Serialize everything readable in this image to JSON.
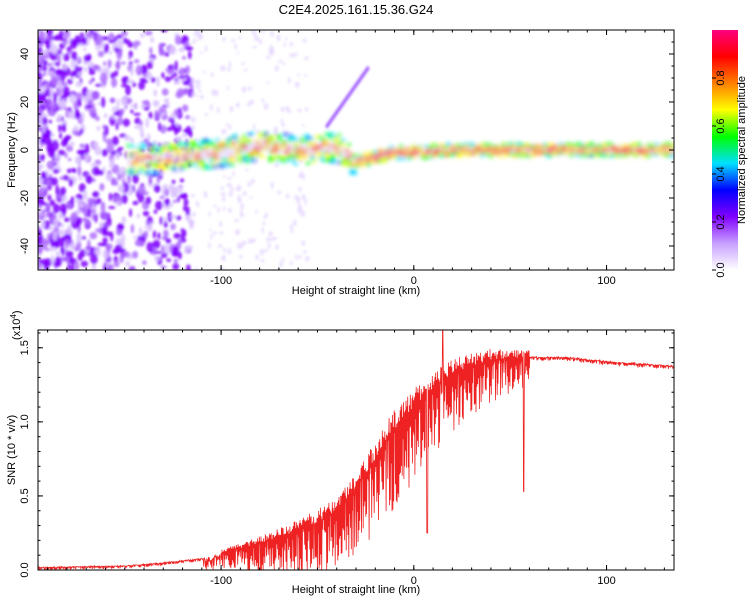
{
  "title": "C2E4.2025.161.15.36.G24",
  "chart_data": [
    {
      "type": "heatmap",
      "xlabel": "Height of straight line (km)",
      "ylabel": "Frequency (Hz)",
      "xlim": [
        -195,
        135
      ],
      "ylim": [
        -50,
        50
      ],
      "xticks": [
        -100,
        0,
        100
      ],
      "xtick_labels": [
        "-100",
        "0",
        "100"
      ],
      "yticks": [
        -40,
        -20,
        0,
        20,
        40
      ],
      "ytick_labels": [
        "-40",
        "-20",
        "0",
        "20",
        "40"
      ],
      "colorbar": {
        "label": "Normalized spectral amplitude",
        "range": [
          0,
          1
        ],
        "ticks": [
          0.0,
          0.2,
          0.4,
          0.6,
          0.8
        ],
        "tick_labels": [
          "0.0",
          "0.2",
          "0.4",
          "0.6",
          "0.8"
        ],
        "colormap": [
          "#ffffff",
          "#c8a0ff",
          "#8000ff",
          "#0000ff",
          "#00e0ff",
          "#00ff00",
          "#ffff00",
          "#ff8000",
          "#ff0000",
          "#ff0080"
        ]
      },
      "ridge": [
        {
          "x": -145,
          "freq": -4
        },
        {
          "x": -120,
          "freq": -3
        },
        {
          "x": -100,
          "freq": -1
        },
        {
          "x": -80,
          "freq": 2
        },
        {
          "x": -60,
          "freq": 0
        },
        {
          "x": -40,
          "freq": 1
        },
        {
          "x": -30,
          "freq": -5
        },
        {
          "x": -20,
          "freq": -3
        },
        {
          "x": -10,
          "freq": -1
        },
        {
          "x": 0,
          "freq": -1
        },
        {
          "x": 20,
          "freq": 0
        },
        {
          "x": 50,
          "freq": 0
        },
        {
          "x": 100,
          "freq": 0
        },
        {
          "x": 135,
          "freq": 0
        }
      ]
    },
    {
      "type": "line",
      "xlabel": "Height of straight line (km)",
      "ylabel": "SNR (10 * v/v)",
      "yscale_label": "(x10",
      "yscale_exp": "4",
      "yscale_close": ")",
      "xlim": [
        -195,
        135
      ],
      "ylim": [
        0,
        1.62
      ],
      "xticks": [
        -100,
        0,
        100
      ],
      "xtick_labels": [
        "-100",
        "0",
        "100"
      ],
      "yticks": [
        0.0,
        0.5,
        1.0,
        1.5
      ],
      "ytick_labels": [
        "0.0",
        "0.5",
        "1.0",
        "1.5"
      ],
      "series": [
        {
          "name": "SNR",
          "color": "#ee2222",
          "envelope": [
            {
              "x": -195,
              "y": 0.02
            },
            {
              "x": -150,
              "y": 0.03
            },
            {
              "x": -130,
              "y": 0.05
            },
            {
              "x": -110,
              "y": 0.08
            },
            {
              "x": -95,
              "y": 0.13
            },
            {
              "x": -80,
              "y": 0.18
            },
            {
              "x": -65,
              "y": 0.24
            },
            {
              "x": -50,
              "y": 0.32
            },
            {
              "x": -40,
              "y": 0.4
            },
            {
              "x": -30,
              "y": 0.55
            },
            {
              "x": -20,
              "y": 0.75
            },
            {
              "x": -10,
              "y": 0.95
            },
            {
              "x": 0,
              "y": 1.1
            },
            {
              "x": 10,
              "y": 1.22
            },
            {
              "x": 20,
              "y": 1.33
            },
            {
              "x": 40,
              "y": 1.42
            },
            {
              "x": 60,
              "y": 1.44
            },
            {
              "x": 80,
              "y": 1.44
            },
            {
              "x": 100,
              "y": 1.41
            },
            {
              "x": 135,
              "y": 1.38
            }
          ],
          "peak": {
            "x": 15,
            "y": 1.62
          },
          "dips": [
            {
              "x": 7,
              "y": 0.25
            },
            {
              "x": 57,
              "y": 0.53
            }
          ]
        }
      ]
    }
  ]
}
